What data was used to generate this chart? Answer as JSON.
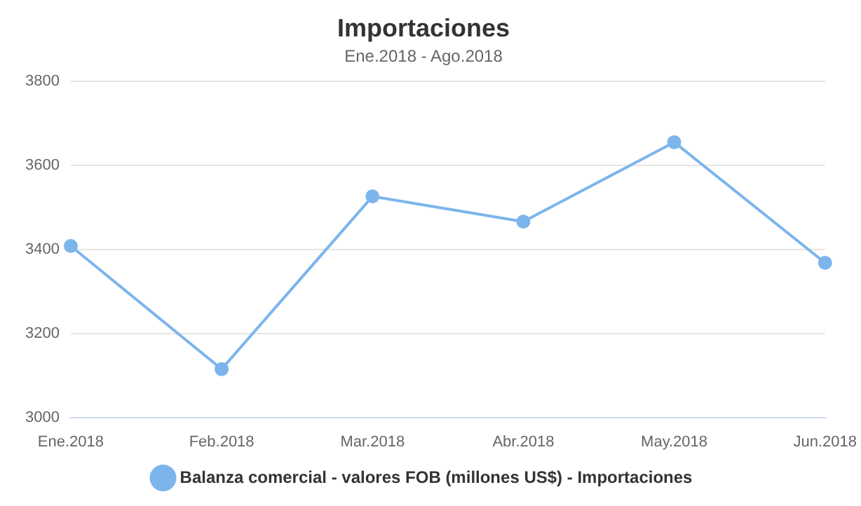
{
  "chart_data": {
    "type": "line",
    "title": "Importaciones",
    "subtitle": "Ene.2018 - Ago.2018",
    "categories": [
      "Ene.2018",
      "Feb.2018",
      "Mar.2018",
      "Abr.2018",
      "May.2018",
      "Jun.2018"
    ],
    "series": [
      {
        "name": "Balanza comercial - valores FOB (millones US$) - Importaciones",
        "color": "#7cb5ec",
        "values": [
          3408,
          3115,
          3526,
          3466,
          3655,
          3368
        ]
      }
    ],
    "ylim": [
      3000,
      3800
    ],
    "yticks": [
      3000,
      3200,
      3400,
      3600,
      3800
    ],
    "grid": "y",
    "legend": "bottom",
    "marker": "circle",
    "line_style": "solid"
  }
}
